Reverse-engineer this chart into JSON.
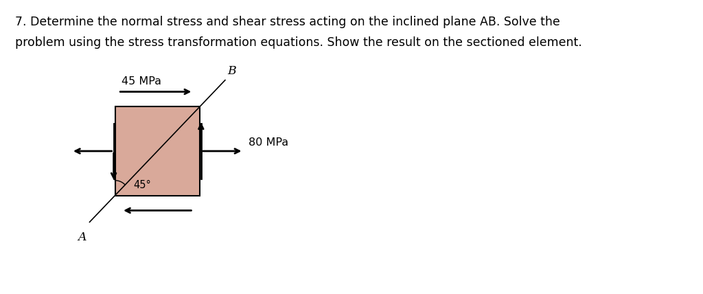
{
  "title_line1": "7. Determine the normal stress and shear stress acting on the inclined plane AB. Solve the",
  "title_line2": "problem using the stress transformation equations. Show the result on the sectioned element.",
  "box_color": "#d9a99a",
  "box_edge_color": "#000000",
  "label_45mpa": "45 MPa",
  "label_80mpa": "80 MPa",
  "label_45deg": "45°",
  "label_A": "A",
  "label_B": "B",
  "bg_color": "#ffffff",
  "text_color": "#000000",
  "arrow_color": "#000000",
  "title_fontsize": 12.5,
  "label_fontsize": 11.5
}
